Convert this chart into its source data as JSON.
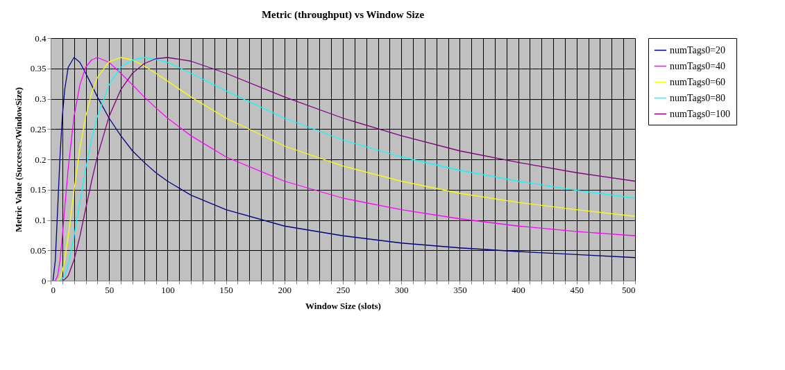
{
  "chart_data": {
    "type": "line",
    "title": "Metric (throughput) vs Window Size",
    "xlabel": "Window Size (slots)",
    "ylabel": "Metric Value (Successes/WindowSize)",
    "x": [
      2,
      4,
      6,
      8,
      10,
      12,
      15,
      20,
      25,
      30,
      35,
      40,
      50,
      60,
      70,
      80,
      90,
      100,
      120,
      150,
      200,
      250,
      300,
      350,
      400,
      450,
      500
    ],
    "series": [
      {
        "name": "numTags0=20",
        "color": "#000080",
        "values": [
          0,
          0.034,
          0.119,
          0.205,
          0.271,
          0.315,
          0.352,
          0.368,
          0.36,
          0.342,
          0.323,
          0.303,
          0.268,
          0.239,
          0.214,
          0.195,
          0.178,
          0.164,
          0.141,
          0.117,
          0.09,
          0.074,
          0.062,
          0.054,
          0.048,
          0.043,
          0.038
        ]
      },
      {
        "name": "numTags0=40",
        "color": "#ff00ff",
        "values": [
          null,
          0,
          0.008,
          0.034,
          0.073,
          0.119,
          0.185,
          0.271,
          0.323,
          0.352,
          0.364,
          0.368,
          0.36,
          0.342,
          0.323,
          0.303,
          0.285,
          0.268,
          0.239,
          0.204,
          0.164,
          0.136,
          0.117,
          0.102,
          0.09,
          0.081,
          0.074
        ]
      },
      {
        "name": "numTags0=60",
        "color": "#ffff00",
        "values": [
          null,
          null,
          0,
          0.004,
          0.015,
          0.034,
          0.073,
          0.149,
          0.218,
          0.271,
          0.309,
          0.335,
          0.361,
          0.368,
          0.364,
          0.354,
          0.342,
          0.329,
          0.303,
          0.268,
          0.222,
          0.189,
          0.164,
          0.144,
          0.129,
          0.117,
          0.106
        ]
      },
      {
        "name": "numTags0=80",
        "color": "#00ffff",
        "values": [
          null,
          null,
          null,
          0,
          0.003,
          0.008,
          0.026,
          0.073,
          0.13,
          0.185,
          0.233,
          0.271,
          0.323,
          0.352,
          0.364,
          0.368,
          0.365,
          0.36,
          0.342,
          0.313,
          0.268,
          0.232,
          0.204,
          0.182,
          0.164,
          0.149,
          0.136
        ]
      },
      {
        "name": "numTags0=100",
        "color": "#800080",
        "values": [
          null,
          null,
          null,
          null,
          0,
          0.002,
          0.008,
          0.034,
          0.073,
          0.119,
          0.164,
          0.205,
          0.271,
          0.315,
          0.342,
          0.358,
          0.366,
          0.368,
          0.362,
          0.342,
          0.303,
          0.268,
          0.239,
          0.214,
          0.195,
          0.178,
          0.164
        ]
      }
    ],
    "xlim": [
      0,
      500
    ],
    "xticks": [
      0,
      {
        "value": 10,
        "label": null
      },
      {
        "value": 20,
        "label": null
      },
      {
        "value": 30,
        "label": null
      },
      {
        "value": 40,
        "label": null
      },
      50,
      {
        "value": 60,
        "label": null
      },
      {
        "value": 70,
        "label": null
      },
      {
        "value": 80,
        "label": null
      },
      {
        "value": 90,
        "label": null
      },
      100,
      {
        "value": 110,
        "label": null
      },
      {
        "value": 120,
        "label": null
      },
      {
        "value": 130,
        "label": null
      },
      {
        "value": 140,
        "label": null
      },
      150,
      {
        "value": 160,
        "label": null
      },
      {
        "value": 170,
        "label": null
      },
      {
        "value": 180,
        "label": null
      },
      {
        "value": 190,
        "label": null
      },
      200,
      {
        "value": 210,
        "label": null
      },
      {
        "value": 220,
        "label": null
      },
      {
        "value": 230,
        "label": null
      },
      {
        "value": 240,
        "label": null
      },
      250,
      {
        "value": 260,
        "label": null
      },
      {
        "value": 270,
        "label": null
      },
      {
        "value": 280,
        "label": null
      },
      {
        "value": 290,
        "label": null
      },
      300,
      {
        "value": 310,
        "label": null
      },
      {
        "value": 320,
        "label": null
      },
      {
        "value": 330,
        "label": null
      },
      {
        "value": 340,
        "label": null
      },
      350,
      {
        "value": 360,
        "label": null
      },
      {
        "value": 370,
        "label": null
      },
      {
        "value": 380,
        "label": null
      },
      {
        "value": 390,
        "label": null
      },
      400,
      {
        "value": 410,
        "label": null
      },
      {
        "value": 420,
        "label": null
      },
      {
        "value": 430,
        "label": null
      },
      {
        "value": 440,
        "label": null
      },
      450,
      {
        "value": 460,
        "label": null
      },
      {
        "value": 470,
        "label": null
      },
      {
        "value": 480,
        "label": null
      },
      {
        "value": 490,
        "label": null
      },
      500
    ],
    "ylim": [
      0,
      0.4
    ],
    "yticks": [
      0,
      0.05,
      0.1,
      0.15,
      0.2,
      0.25,
      0.3,
      0.35,
      0.4
    ],
    "grid": true,
    "legend": "right",
    "marker": "none",
    "line_style": "solid"
  }
}
